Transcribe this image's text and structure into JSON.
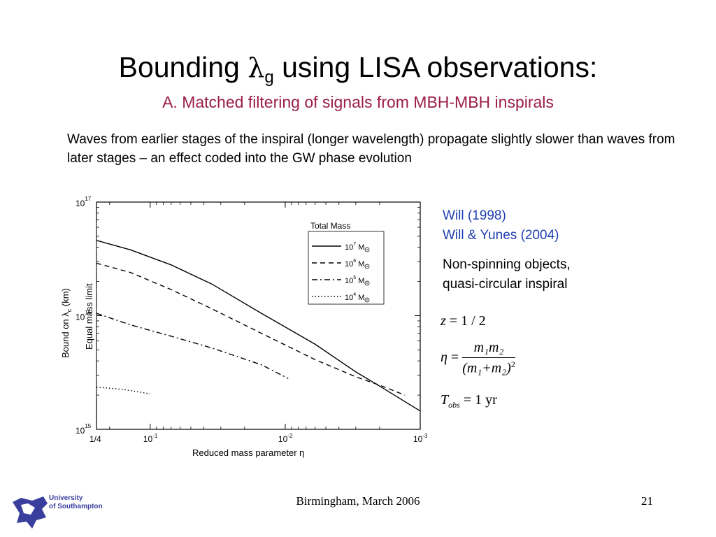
{
  "slide": {
    "title_pre": "Bounding ",
    "title_lambda": "λ",
    "title_sub": "g",
    "title_post": " using LISA observations:",
    "subtitle": "A. Matched filtering of signals from MBH-MBH inspirals",
    "body": "Waves from earlier stages of the inspiral (longer wavelength) propagate slightly slower than waves from later stages –  an effect coded into the GW phase evolution",
    "ref1": "Will (1998)",
    "ref2": "Will & Yunes (2004)",
    "note1": "Non-spinning objects,",
    "note2": "quasi-circular inspiral",
    "footer": "Birmingham, March 2006",
    "page_number": "21",
    "logo_line1": "University",
    "logo_line2": "of Southampton",
    "colors": {
      "subtitle": "#9b1d48",
      "refs": "#1f3fb0",
      "logo": "#3a3f9e"
    }
  },
  "equations": {
    "z": "z",
    "z_val": "= 1 / 2",
    "eta": "η",
    "eta_eq": "=",
    "eta_num": "m₁m₂",
    "eta_den": "(m₁+m₂)",
    "eta_den_exp": "2",
    "tobs": "T",
    "tobs_sub": "obs",
    "tobs_val": "= 1 yr"
  },
  "chart_data": {
    "type": "line",
    "xscale": "log",
    "yscale": "log",
    "xlim": [
      0.001,
      0.25
    ],
    "ylim": [
      1000000000000000.0,
      1e+17
    ],
    "xlabel": "Reduced mass parameter η",
    "ylabel": "Bound on λ",
    "ylabel_sub": "c",
    "ylabel_unit": " (km)",
    "x_ticks": [
      {
        "value": 0.25,
        "label": "1/4",
        "exp": ""
      },
      {
        "value": 0.1,
        "label": "10",
        "exp": "-1"
      },
      {
        "value": 0.01,
        "label": "10",
        "exp": "-2"
      },
      {
        "value": 0.001,
        "label": "10",
        "exp": "-3"
      }
    ],
    "y_ticks": [
      {
        "value": 1e+17,
        "label": "10",
        "exp": "17"
      },
      {
        "value": 1e+16,
        "label": "10",
        "exp": "16"
      },
      {
        "value": 1000000000000000.0,
        "label": "10",
        "exp": "15"
      }
    ],
    "vline": {
      "x": 0.25,
      "label": "Equal mass limit"
    },
    "legend": {
      "title": "Total Mass",
      "position": "top-right"
    },
    "series": [
      {
        "name": "10",
        "exp": "7",
        "unit": " M",
        "style": "solid",
        "points": [
          [
            0.25,
            4.6e+16
          ],
          [
            0.14,
            3.8e+16
          ],
          [
            0.07,
            2.8e+16
          ],
          [
            0.035,
            1.9e+16
          ],
          [
            0.015,
            1.05e+16
          ],
          [
            0.006,
            5600000000000000.0
          ],
          [
            0.003,
            3200000000000000.0
          ],
          [
            0.002,
            2400000000000000.0
          ],
          [
            0.001,
            1450000000000000.0
          ]
        ]
      },
      {
        "name": "10",
        "exp": "6",
        "unit": " M",
        "style": "dashed",
        "points": [
          [
            0.25,
            2.9e+16
          ],
          [
            0.14,
            2.4e+16
          ],
          [
            0.07,
            1.7e+16
          ],
          [
            0.035,
            1.15e+16
          ],
          [
            0.015,
            7000000000000000.0
          ],
          [
            0.006,
            4100000000000000.0
          ],
          [
            0.003,
            2900000000000000.0
          ],
          [
            0.002,
            2450000000000000.0
          ],
          [
            0.0013,
            2000000000000000.0
          ]
        ]
      },
      {
        "name": "10",
        "exp": "5",
        "unit": " M",
        "style": "dashdot",
        "points": [
          [
            0.25,
            1.05e+16
          ],
          [
            0.14,
            8300000000000000.0
          ],
          [
            0.07,
            6600000000000000.0
          ],
          [
            0.035,
            5200000000000000.0
          ],
          [
            0.015,
            3700000000000000.0
          ],
          [
            0.0095,
            2800000000000000.0
          ]
        ]
      },
      {
        "name": "10",
        "exp": "4",
        "unit": " M",
        "style": "dotted",
        "points": [
          [
            0.25,
            2350000000000000.0
          ],
          [
            0.16,
            2250000000000000.0
          ],
          [
            0.1,
            2050000000000000.0
          ]
        ]
      }
    ]
  }
}
